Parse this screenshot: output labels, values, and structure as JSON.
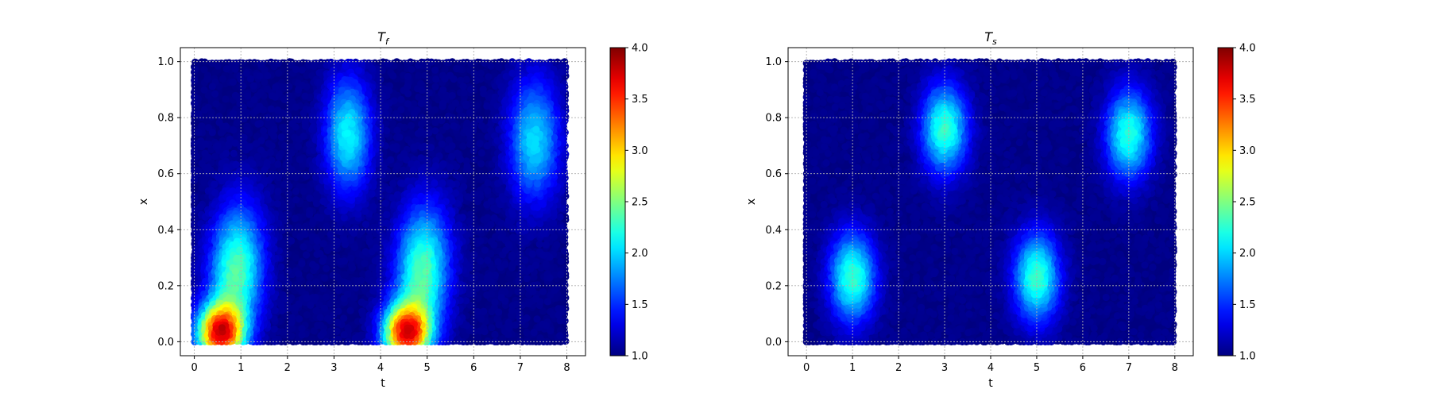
{
  "chart_data": [
    {
      "type": "heatmap",
      "title": "T",
      "title_sub": "f",
      "xlabel": "t",
      "ylabel": "x",
      "xlim": [
        -0.3,
        8.4
      ],
      "ylim": [
        -0.05,
        1.05
      ],
      "xticks": [
        0,
        1,
        2,
        3,
        4,
        5,
        6,
        7,
        8
      ],
      "yticks": [
        0.0,
        0.2,
        0.4,
        0.6,
        0.8,
        1.0
      ],
      "ytick_labels": [
        "0.0",
        "0.2",
        "0.4",
        "0.6",
        "0.8",
        "1.0"
      ],
      "grid": true,
      "colormap": "jet",
      "clim": [
        1.0,
        4.0
      ],
      "colorbar_ticks": [
        1.0,
        1.5,
        2.0,
        2.5,
        3.0,
        3.5,
        4.0
      ],
      "colorbar_labels": [
        "1.0",
        "1.5",
        "2.0",
        "2.5",
        "3.0",
        "3.5",
        "4.0"
      ],
      "domain_t": [
        0,
        8
      ],
      "domain_x": [
        0,
        1
      ],
      "baseline": 1.0,
      "features": [
        {
          "t": 0.9,
          "x": 0.25,
          "st": 0.38,
          "sx": 0.16,
          "amp": 1.35,
          "skew_t": 0.25
        },
        {
          "t": 0.55,
          "x": 0.03,
          "st": 0.33,
          "sx": 0.07,
          "amp": 2.4,
          "skew_t": 0.0
        },
        {
          "t": 3.3,
          "x": 0.74,
          "st": 0.32,
          "sx": 0.14,
          "amp": 1.1,
          "skew_t": 0.0
        },
        {
          "t": 4.9,
          "x": 0.25,
          "st": 0.38,
          "sx": 0.16,
          "amp": 1.35,
          "skew_t": 0.25
        },
        {
          "t": 4.55,
          "x": 0.03,
          "st": 0.33,
          "sx": 0.07,
          "amp": 2.4,
          "skew_t": 0.0
        },
        {
          "t": 7.3,
          "x": 0.72,
          "st": 0.36,
          "sx": 0.15,
          "amp": 1.0,
          "skew_t": 0.0
        }
      ]
    },
    {
      "type": "heatmap",
      "title": "T",
      "title_sub": "s",
      "xlabel": "t",
      "ylabel": "x",
      "xlim": [
        -0.4,
        8.4
      ],
      "ylim": [
        -0.05,
        1.05
      ],
      "xticks": [
        0,
        1,
        2,
        3,
        4,
        5,
        6,
        7,
        8
      ],
      "yticks": [
        0.0,
        0.2,
        0.4,
        0.6,
        0.8,
        1.0
      ],
      "ytick_labels": [
        "0.0",
        "0.2",
        "0.4",
        "0.6",
        "0.8",
        "1.0"
      ],
      "grid": true,
      "colormap": "jet",
      "clim": [
        1.0,
        4.0
      ],
      "colorbar_ticks": [
        1.0,
        1.5,
        2.0,
        2.5,
        3.0,
        3.5,
        4.0
      ],
      "colorbar_labels": [
        "1.0",
        "1.5",
        "2.0",
        "2.5",
        "3.0",
        "3.5",
        "4.0"
      ],
      "domain_t": [
        0,
        8
      ],
      "domain_x": [
        0,
        1
      ],
      "baseline": 1.0,
      "features": [
        {
          "t": 1.0,
          "x": 0.23,
          "st": 0.33,
          "sx": 0.11,
          "amp": 1.25,
          "skew_t": 0.0
        },
        {
          "t": 3.0,
          "x": 0.76,
          "st": 0.33,
          "sx": 0.11,
          "amp": 1.25,
          "skew_t": 0.0
        },
        {
          "t": 5.0,
          "x": 0.23,
          "st": 0.33,
          "sx": 0.11,
          "amp": 1.25,
          "skew_t": 0.0
        },
        {
          "t": 7.0,
          "x": 0.74,
          "st": 0.33,
          "sx": 0.11,
          "amp": 1.2,
          "skew_t": 0.0
        }
      ]
    }
  ]
}
